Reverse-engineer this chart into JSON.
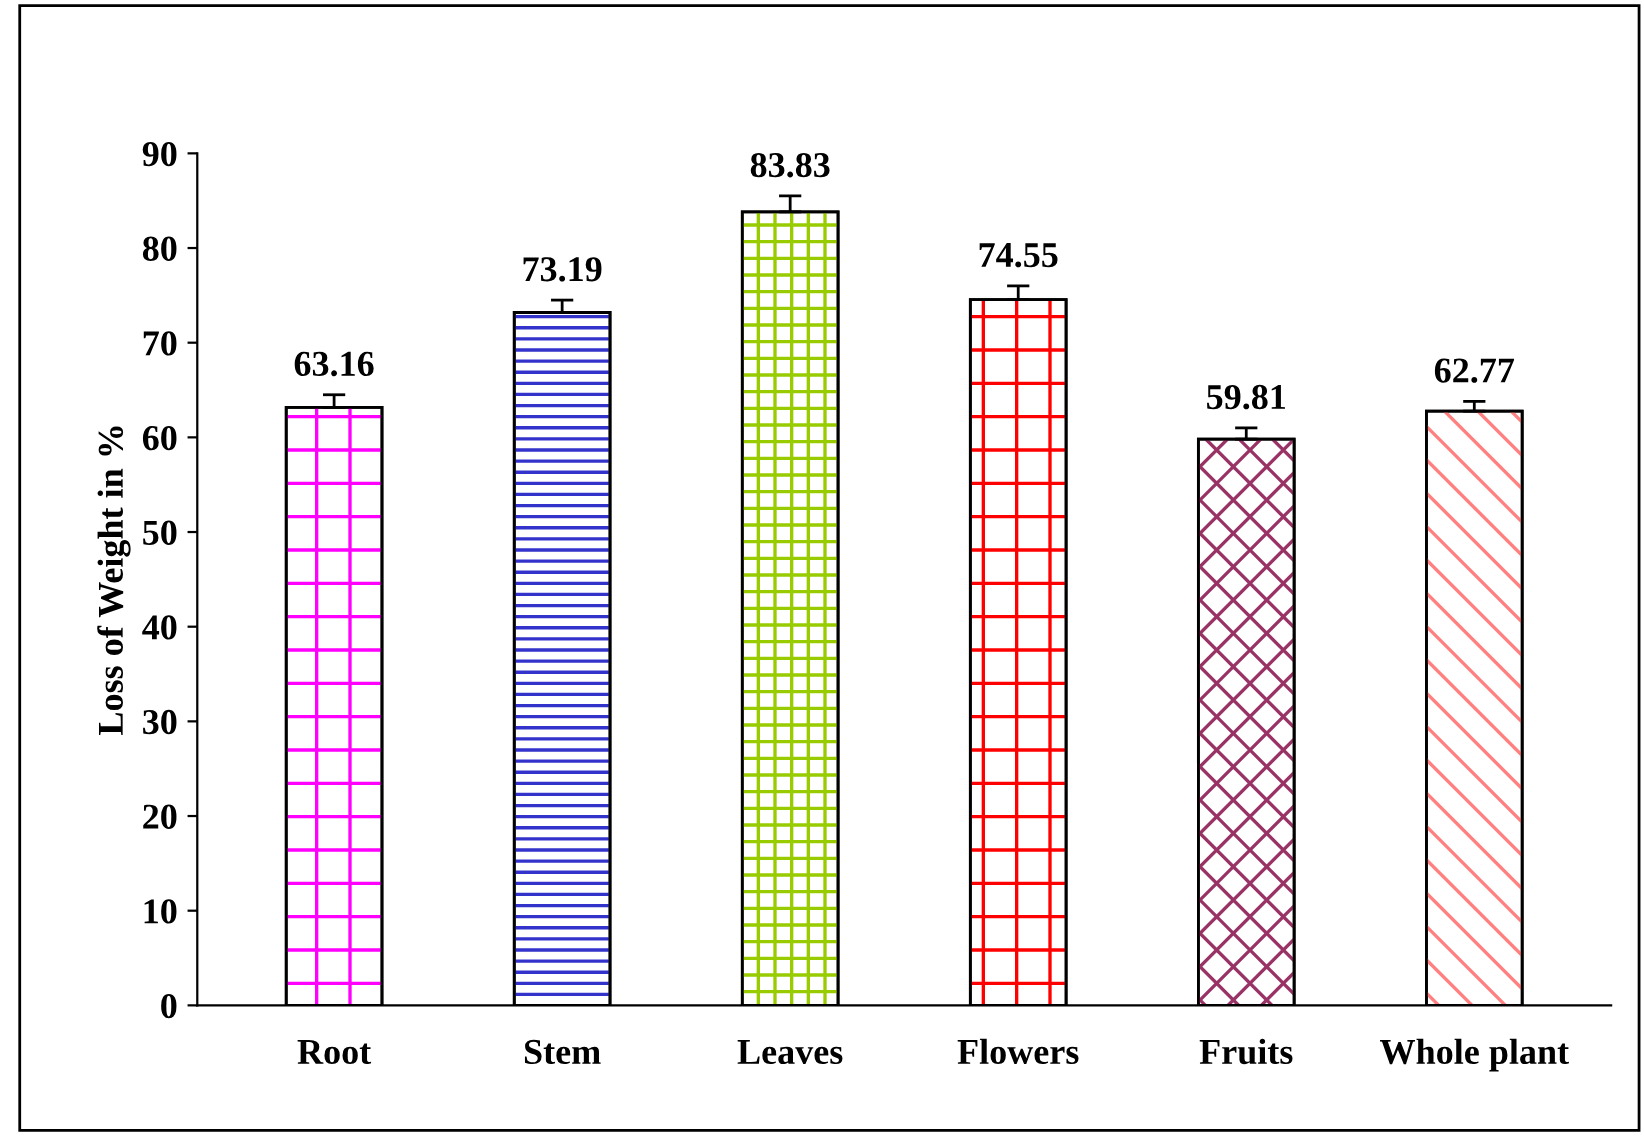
{
  "chart_data": {
    "type": "bar",
    "ylabel": "Loss of Weight in %",
    "categories": [
      "Root",
      "Stem",
      "Leaves",
      "Flowers",
      "Fruits",
      "Whole plant"
    ],
    "values": [
      63.16,
      73.19,
      83.83,
      74.55,
      59.81,
      62.77
    ],
    "colors": [
      "#ff00ff",
      "#3333cc",
      "#99cc00",
      "#ff0000",
      "#993366",
      "#ff8080"
    ],
    "errors": [
      [
        63.16,
        64.5
      ],
      [
        73.19,
        74.5
      ],
      [
        83.83,
        85.5
      ],
      [
        74.55,
        76.0
      ],
      [
        59.81,
        61.0
      ],
      [
        62.77,
        63.8
      ]
    ],
    "ylim": [
      0,
      90
    ],
    "yticks": [
      0,
      10,
      20,
      30,
      40,
      50,
      60,
      70,
      80,
      90
    ],
    "data_labels": true,
    "grid": false,
    "legend": false
  }
}
